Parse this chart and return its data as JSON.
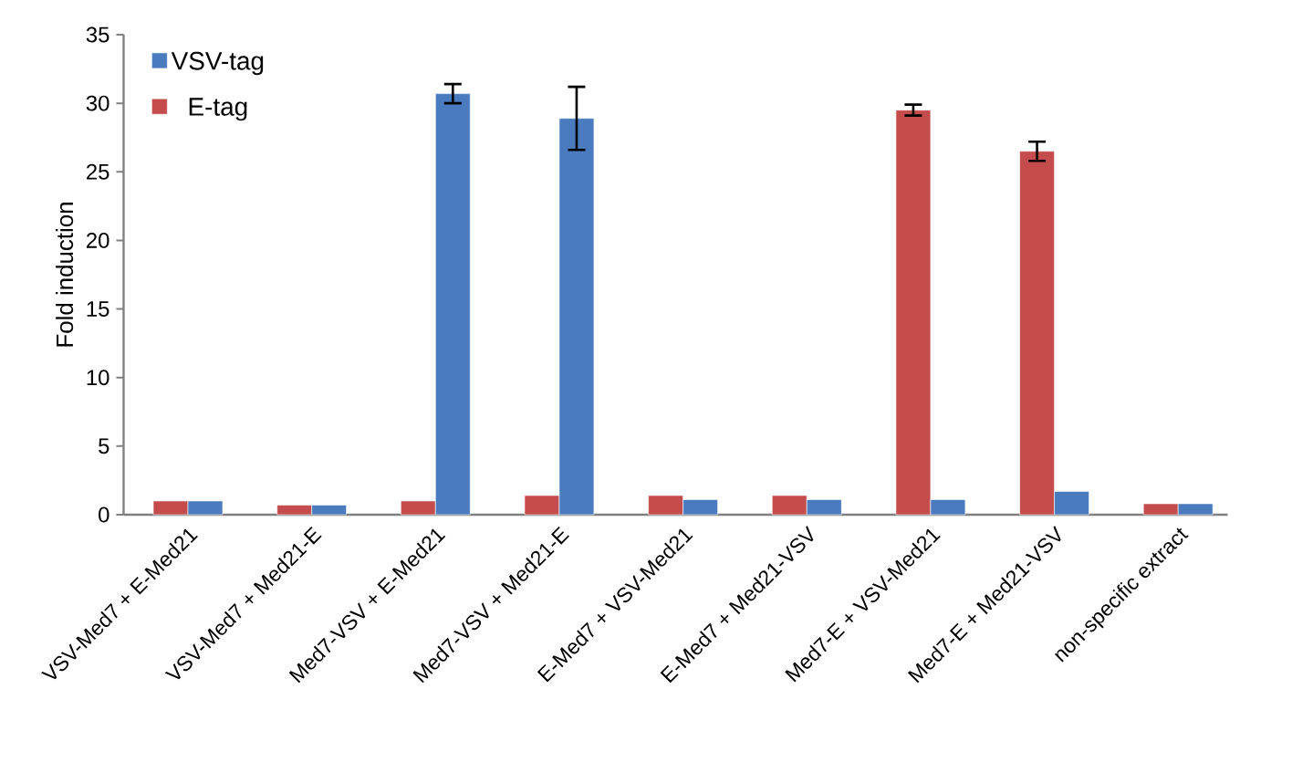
{
  "chart_data": {
    "type": "bar",
    "ylabel": "Fold induction",
    "categories": [
      "VSV-Med7 + E-Med21",
      "VSV-Med7 + Med21-E",
      "Med7-VSV + E-Med21",
      "Med7-VSV + Med21-E",
      "E-Med7 + VSV-Med21",
      "E-Med7 + Med21-VSV",
      "Med7-E + VSV-Med21",
      "Med7-E + Med21-VSV",
      "non-specific extract"
    ],
    "series": [
      {
        "name": "E-tag",
        "color": "#c44c4c",
        "values": [
          1.0,
          0.7,
          1.0,
          1.4,
          1.4,
          1.4,
          29.5,
          26.5,
          0.8
        ],
        "errors": [
          null,
          null,
          null,
          null,
          null,
          null,
          0.4,
          0.7,
          null
        ]
      },
      {
        "name": "VSV-tag",
        "color": "#4a7bbf",
        "values": [
          1.0,
          0.7,
          30.7,
          28.9,
          1.1,
          1.1,
          1.1,
          1.7,
          0.8
        ],
        "errors": [
          null,
          null,
          0.7,
          2.3,
          null,
          null,
          null,
          null,
          null
        ]
      }
    ],
    "ylim": [
      0,
      35
    ],
    "yticks": [
      0,
      5,
      10,
      15,
      20,
      25,
      30,
      35
    ],
    "legend": "top left",
    "grid": false
  }
}
